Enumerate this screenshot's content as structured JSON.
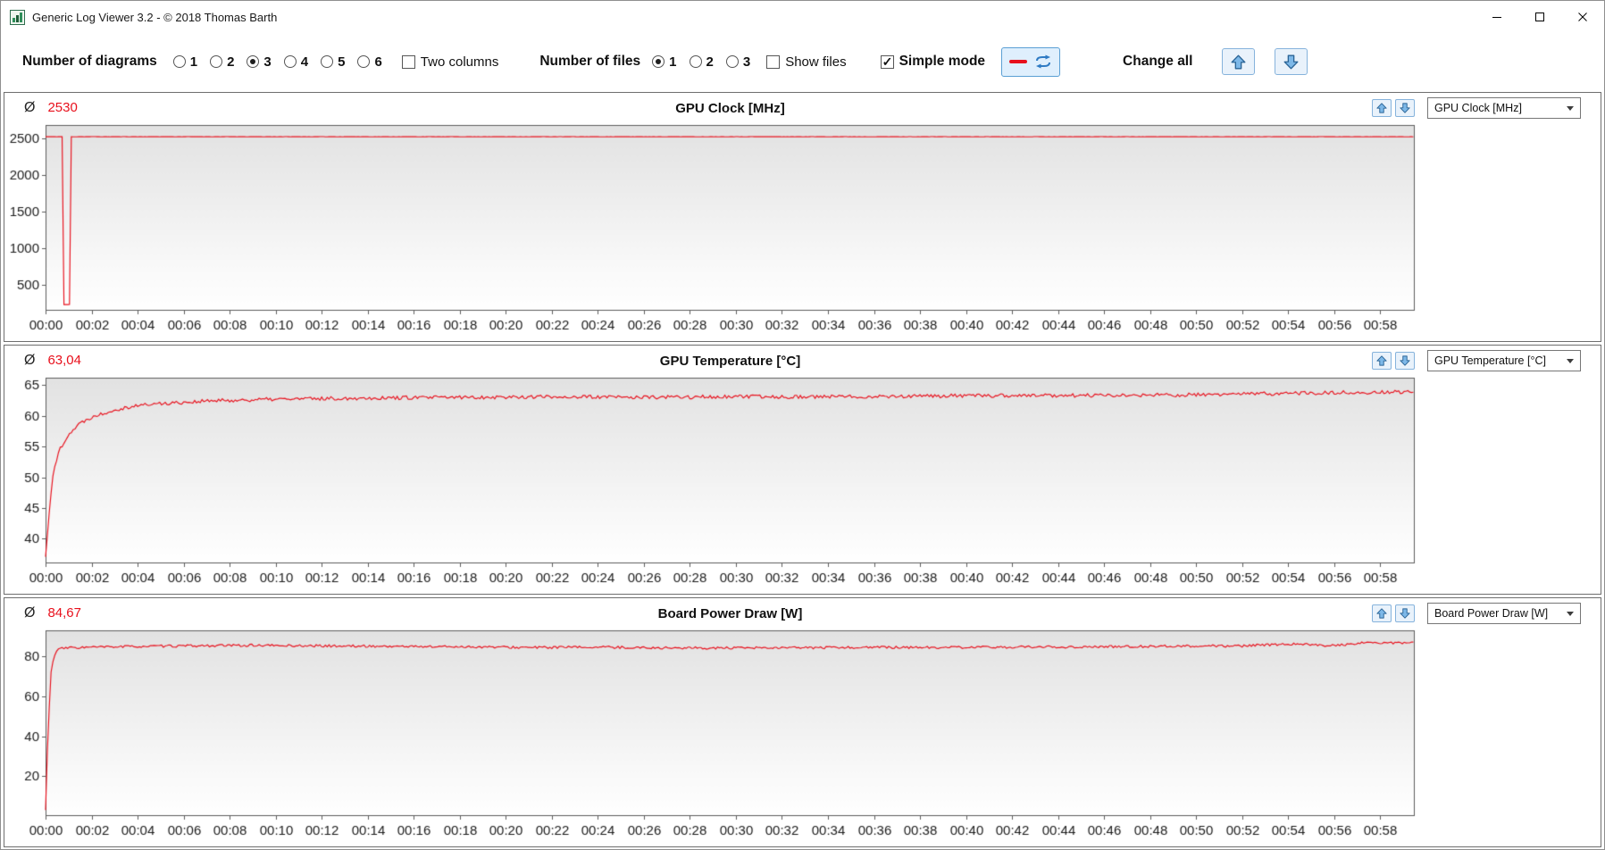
{
  "window": {
    "title": "Generic Log Viewer 3.2 - © 2018 Thomas Barth"
  },
  "toolbar": {
    "diagrams": {
      "label": "Number of diagrams",
      "options": [
        "1",
        "2",
        "3",
        "4",
        "5",
        "6"
      ],
      "selected": "3"
    },
    "two_columns": {
      "label": "Two columns",
      "checked": false
    },
    "files": {
      "label": "Number of files",
      "options": [
        "1",
        "2",
        "3"
      ],
      "selected": "1"
    },
    "show_files": {
      "label": "Show files",
      "checked": false
    },
    "simple_mode": {
      "label": "Simple mode",
      "checked": true
    },
    "change_all_label": "Change all"
  },
  "panels": [
    {
      "avg_symbol": "Ø",
      "avg_value": "2530",
      "title": "GPU Clock [MHz]",
      "dropdown_value": "GPU Clock [MHz]"
    },
    {
      "avg_symbol": "Ø",
      "avg_value": "63,04",
      "title": "GPU Temperature [°C]",
      "dropdown_value": "GPU Temperature [°C]"
    },
    {
      "avg_symbol": "Ø",
      "avg_value": "84,67",
      "title": "Board Power Draw [W]",
      "dropdown_value": "Board Power Draw [W]"
    }
  ],
  "colors": {
    "series": "#e8101c",
    "avg_text": "#e8101c",
    "arrow_blue": "#7db8e8"
  },
  "chart_data": [
    {
      "type": "line",
      "title": "GPU Clock [MHz]",
      "ylabel": "MHz",
      "average": 2530,
      "color": "#e8101c",
      "y_ticks": [
        500,
        1000,
        1500,
        2000,
        2500
      ],
      "ylim": [
        140,
        2690
      ],
      "x_step_min": 2,
      "x_max_min": 59.5,
      "x_labels": [
        "00:00",
        "00:02",
        "00:04",
        "00:06",
        "00:08",
        "00:10",
        "00:12",
        "00:14",
        "00:16",
        "00:18",
        "00:20",
        "00:22",
        "00:24",
        "00:26",
        "00:28",
        "00:30",
        "00:32",
        "00:34",
        "00:36",
        "00:38",
        "00:40",
        "00:42",
        "00:44",
        "00:46",
        "00:48",
        "00:50",
        "00:52",
        "00:54",
        "00:56",
        "00:58"
      ],
      "keypoints": [
        [
          0,
          2529
        ],
        [
          0.75,
          2529
        ],
        [
          0.8,
          225
        ],
        [
          1.05,
          225
        ],
        [
          1.1,
          2529
        ],
        [
          59.5,
          2529
        ]
      ],
      "noise": 2,
      "seed": 11
    },
    {
      "type": "line",
      "title": "GPU Temperature [°C]",
      "ylabel": "°C",
      "average": 63.04,
      "color": "#e8101c",
      "y_ticks": [
        40,
        45,
        50,
        55,
        60,
        65
      ],
      "ylim": [
        36,
        66.2
      ],
      "x_step_min": 2,
      "x_max_min": 59.5,
      "x_labels": [
        "00:00",
        "00:02",
        "00:04",
        "00:06",
        "00:08",
        "00:10",
        "00:12",
        "00:14",
        "00:16",
        "00:18",
        "00:20",
        "00:22",
        "00:24",
        "00:26",
        "00:28",
        "00:30",
        "00:32",
        "00:34",
        "00:36",
        "00:38",
        "00:40",
        "00:42",
        "00:44",
        "00:46",
        "00:48",
        "00:50",
        "00:52",
        "00:54",
        "00:56",
        "00:58"
      ],
      "keypoints": [
        [
          0,
          37
        ],
        [
          0.15,
          44
        ],
        [
          0.3,
          50
        ],
        [
          0.6,
          54.5
        ],
        [
          1,
          57
        ],
        [
          1.5,
          58.8
        ],
        [
          2,
          59.8
        ],
        [
          3,
          61
        ],
        [
          4,
          61.7
        ],
        [
          5,
          62
        ],
        [
          7,
          62.4
        ],
        [
          10,
          62.7
        ],
        [
          14,
          62.9
        ],
        [
          18,
          63
        ],
        [
          22,
          63.1
        ],
        [
          26,
          63
        ],
        [
          30,
          63.1
        ],
        [
          34,
          63.1
        ],
        [
          38,
          63.2
        ],
        [
          42,
          63.3
        ],
        [
          46,
          63.3
        ],
        [
          50,
          63.4
        ],
        [
          53,
          63.6
        ],
        [
          55,
          63.7
        ],
        [
          57,
          63.8
        ],
        [
          59.5,
          63.9
        ]
      ],
      "noise": 0.3,
      "seed": 22
    },
    {
      "type": "line",
      "title": "Board Power Draw [W]",
      "ylabel": "W",
      "average": 84.67,
      "color": "#e8101c",
      "y_ticks": [
        20,
        40,
        60,
        80
      ],
      "ylim": [
        0,
        93
      ],
      "x_step_min": 2,
      "x_max_min": 59.5,
      "x_labels": [
        "00:00",
        "00:02",
        "00:04",
        "00:06",
        "00:08",
        "00:10",
        "00:12",
        "00:14",
        "00:16",
        "00:18",
        "00:20",
        "00:22",
        "00:24",
        "00:26",
        "00:28",
        "00:30",
        "00:32",
        "00:34",
        "00:36",
        "00:38",
        "00:40",
        "00:42",
        "00:44",
        "00:46",
        "00:48",
        "00:50",
        "00:52",
        "00:54",
        "00:56",
        "00:58"
      ],
      "keypoints": [
        [
          0,
          3
        ],
        [
          0.1,
          40
        ],
        [
          0.25,
          75
        ],
        [
          0.5,
          83.5
        ],
        [
          1,
          84.3
        ],
        [
          3,
          84.8
        ],
        [
          6,
          85.2
        ],
        [
          9,
          85.5
        ],
        [
          12,
          85.2
        ],
        [
          15,
          85
        ],
        [
          18,
          84.8
        ],
        [
          21,
          84.4
        ],
        [
          24,
          84.6
        ],
        [
          27,
          84.2
        ],
        [
          30,
          84.1
        ],
        [
          33,
          84.3
        ],
        [
          36,
          84.5
        ],
        [
          39,
          84.4
        ],
        [
          42,
          84.6
        ],
        [
          45,
          84.7
        ],
        [
          48,
          85
        ],
        [
          50,
          85.2
        ],
        [
          52,
          85.1
        ],
        [
          53.5,
          86
        ],
        [
          54.5,
          86.3
        ],
        [
          55.5,
          85.4
        ],
        [
          56.5,
          85.8
        ],
        [
          57.5,
          87
        ],
        [
          58.5,
          86.6
        ],
        [
          59.5,
          86.8
        ]
      ],
      "noise": 0.6,
      "seed": 33
    }
  ]
}
